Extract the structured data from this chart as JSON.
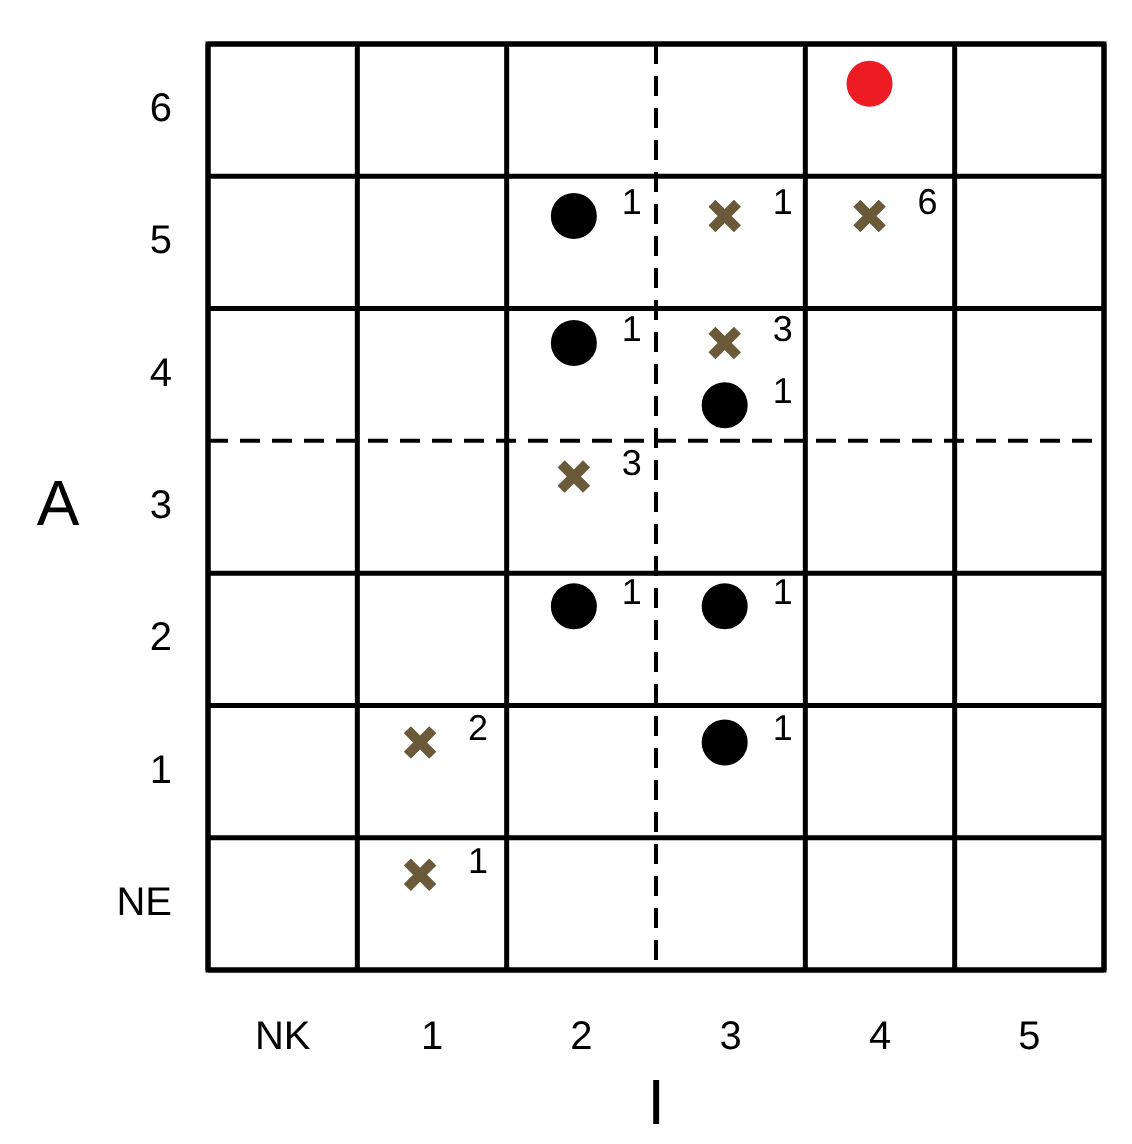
{
  "chart_data": {
    "type": "scatter",
    "xlabel": "I",
    "ylabel": "A",
    "xlim": [
      -0.5,
      5.5
    ],
    "xticks": [
      {
        "value": -0.5,
        "label": null
      },
      {
        "value": 0,
        "label": "NK"
      },
      {
        "value": 0.5,
        "label": null
      },
      {
        "value": 1,
        "label": "1"
      },
      {
        "value": 1.5,
        "label": null
      },
      {
        "value": 2,
        "label": "2"
      },
      {
        "value": 3,
        "label": "3"
      },
      {
        "value": 3.5,
        "label": null
      },
      {
        "value": 4,
        "label": "4"
      },
      {
        "value": 4.5,
        "label": null
      },
      {
        "value": 5,
        "label": "5"
      },
      {
        "value": 5.5,
        "label": null
      }
    ],
    "ylim": [
      -0.5,
      6.5
    ],
    "yticks": [
      {
        "value": -0.5,
        "label": null
      },
      {
        "value": 0,
        "label": "NE"
      },
      {
        "value": 0.5,
        "label": null
      },
      {
        "value": 1,
        "label": "1"
      },
      {
        "value": 1.5,
        "label": null
      },
      {
        "value": 2,
        "label": "2"
      },
      {
        "value": 2.5,
        "label": null
      },
      {
        "value": 3,
        "label": "3"
      },
      {
        "value": 4,
        "label": "4"
      },
      {
        "value": 4.5,
        "label": null
      },
      {
        "value": 5,
        "label": "5"
      },
      {
        "value": 5.5,
        "label": null
      },
      {
        "value": 6,
        "label": "6"
      },
      {
        "value": 6.5,
        "label": null
      }
    ],
    "grid": true,
    "legend": false,
    "ref_lines": [
      {
        "axis": "x",
        "value": 2.5,
        "line_style": "dashed"
      },
      {
        "axis": "y",
        "value": 3.5,
        "line_style": "dashed"
      }
    ],
    "annotations": [
      {
        "text": "1",
        "x": 1.95,
        "y": 5.2
      },
      {
        "text": "1",
        "x": 1.95,
        "y": 4.24
      },
      {
        "text": "1",
        "x": 2.96,
        "y": 3.77
      },
      {
        "text": "1",
        "x": 1.95,
        "y": 2.25
      },
      {
        "text": "1",
        "x": 2.96,
        "y": 2.25
      },
      {
        "text": "1",
        "x": 2.96,
        "y": 1.22
      },
      {
        "text": "1",
        "x": 2.96,
        "y": 5.2
      },
      {
        "text": "6",
        "x": 3.93,
        "y": 5.2
      },
      {
        "text": "3",
        "x": 2.96,
        "y": 4.24
      },
      {
        "text": "3",
        "x": 1.95,
        "y": 3.23
      },
      {
        "text": "2",
        "x": 0.92,
        "y": 1.22
      },
      {
        "text": "1",
        "x": 0.92,
        "y": 0.22
      }
    ],
    "series": [
      {
        "color": "#000000",
        "marker": "circle",
        "x": [
          1.95,
          1.95,
          2.96,
          1.95,
          2.96,
          2.96
        ],
        "values": [
          5.2,
          4.24,
          3.77,
          2.25,
          2.25,
          1.22
        ]
      },
      {
        "color": "#6b5a3a",
        "marker": "cross",
        "x": [
          2.96,
          3.93,
          2.96,
          1.95,
          0.92,
          0.92
        ],
        "values": [
          5.2,
          5.2,
          4.24,
          3.23,
          1.22,
          0.22
        ]
      },
      {
        "color": "#ed1c24",
        "marker": "circle",
        "x": [
          3.93
        ],
        "values": [
          6.2
        ]
      }
    ]
  }
}
